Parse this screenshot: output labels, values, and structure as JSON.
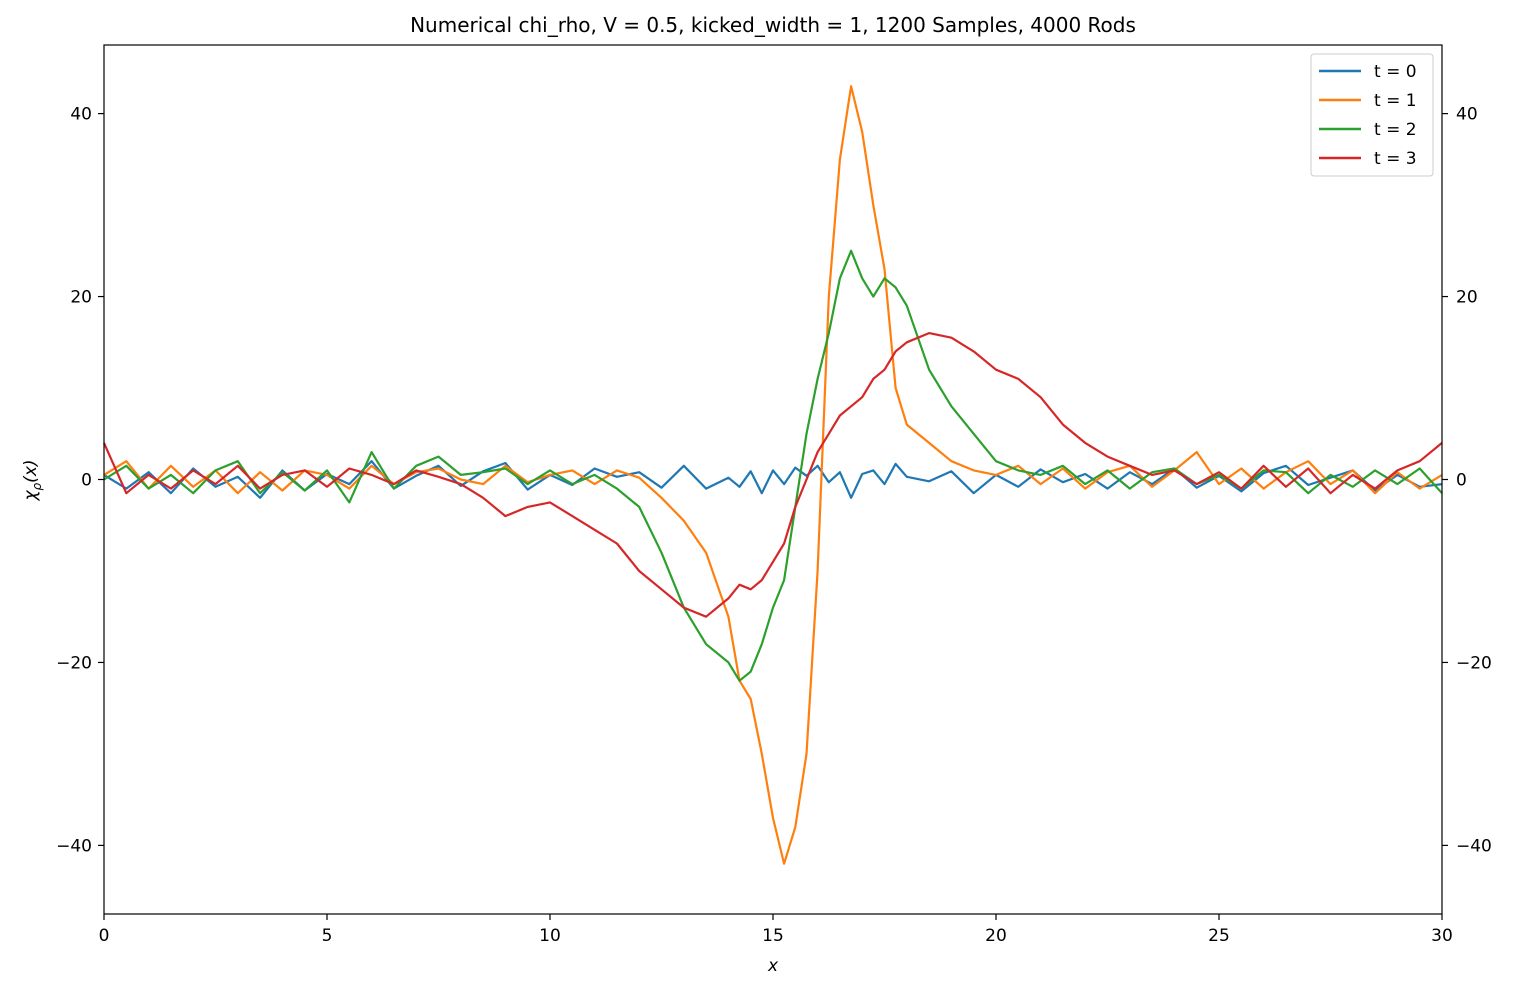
{
  "chart_data": {
    "type": "line",
    "title": "Numerical chi_rho, V = 0.5, kicked_width = 1, 1200 Samples, 4000 Rods",
    "xlabel": "x",
    "ylabel": "χρ(x)",
    "ylabel_main": "χ",
    "ylabel_sub": "ρ",
    "ylabel_arg": "(x)",
    "xlim": [
      0,
      30
    ],
    "ylim": [
      -47.5,
      47.5
    ],
    "xticks": [
      0,
      5,
      10,
      15,
      20,
      25,
      30
    ],
    "xtick_labels": [
      "0",
      "5",
      "10",
      "15",
      "20",
      "25",
      "30"
    ],
    "yticks": [
      -40,
      -20,
      0,
      20,
      40
    ],
    "ytick_labels": [
      "−40",
      "−20",
      "0",
      "20",
      "40"
    ],
    "right_yticks": [
      -40,
      -20,
      0,
      20,
      40
    ],
    "right_ytick_labels": [
      "−40",
      "−20",
      "0",
      "20",
      "40"
    ],
    "grid": false,
    "legend_position": "top-right",
    "x": [
      0.0,
      0.5,
      1.0,
      1.5,
      2.0,
      2.5,
      3.0,
      3.5,
      4.0,
      4.5,
      5.0,
      5.5,
      6.0,
      6.5,
      7.0,
      7.5,
      8.0,
      8.5,
      9.0,
      9.5,
      10.0,
      10.5,
      11.0,
      11.5,
      12.0,
      12.5,
      13.0,
      13.5,
      14.0,
      14.25,
      14.5,
      14.75,
      15.0,
      15.25,
      15.5,
      15.75,
      16.0,
      16.25,
      16.5,
      16.75,
      17.0,
      17.25,
      17.5,
      17.75,
      18.0,
      18.5,
      19.0,
      19.5,
      20.0,
      20.5,
      21.0,
      21.5,
      22.0,
      22.5,
      23.0,
      23.5,
      24.0,
      24.5,
      25.0,
      25.5,
      26.0,
      26.5,
      27.0,
      27.5,
      28.0,
      28.5,
      29.0,
      29.5,
      30.0
    ],
    "series": [
      {
        "name": "t = 0",
        "color": "#1f77b4",
        "values": [
          0.5,
          -1.0,
          0.8,
          -1.5,
          1.2,
          -0.8,
          0.3,
          -2.0,
          1.0,
          -1.2,
          0.6,
          -0.5,
          2.0,
          -1.0,
          0.4,
          1.5,
          -0.7,
          0.9,
          1.8,
          -1.1,
          0.5,
          -0.6,
          1.2,
          0.3,
          0.8,
          -0.9,
          1.5,
          -1.0,
          0.2,
          -0.8,
          0.9,
          -1.5,
          1.0,
          -0.5,
          1.3,
          0.4,
          1.5,
          -0.3,
          0.8,
          -2.0,
          0.6,
          1.0,
          -0.5,
          1.7,
          0.3,
          -0.2,
          0.9,
          -1.5,
          0.5,
          -0.8,
          1.1,
          -0.3,
          0.6,
          -1.0,
          0.8,
          -0.5,
          1.2,
          -0.9,
          0.4,
          -1.3,
          0.7,
          1.5,
          -0.6,
          0.2,
          1.0,
          -1.2,
          0.5,
          -0.8,
          -0.5
        ]
      },
      {
        "name": "t = 1",
        "color": "#ff7f0e",
        "values": [
          0.5,
          2.0,
          -1.0,
          1.5,
          -0.8,
          1.0,
          -1.5,
          0.8,
          -1.2,
          1.0,
          0.5,
          -1.0,
          1.5,
          -0.5,
          0.8,
          1.2,
          0.0,
          -0.5,
          1.5,
          -0.3,
          0.5,
          1.0,
          -0.5,
          1.0,
          0.2,
          -2.0,
          -4.5,
          -8.0,
          -15.0,
          -22.0,
          -24.0,
          -30.0,
          -37.0,
          -42.0,
          -38.0,
          -30.0,
          -10.0,
          20.0,
          35.0,
          43.0,
          38.0,
          30.0,
          23.0,
          10.0,
          6.0,
          4.0,
          2.0,
          1.0,
          0.5,
          1.5,
          -0.5,
          1.2,
          -1.0,
          0.8,
          1.5,
          -0.8,
          1.0,
          3.0,
          -0.5,
          1.2,
          -1.0,
          0.8,
          2.0,
          -0.5,
          1.0,
          -1.5,
          0.8,
          -1.0,
          0.5
        ]
      },
      {
        "name": "t = 2",
        "color": "#2ca02c",
        "values": [
          0.0,
          1.5,
          -1.0,
          0.5,
          -1.5,
          1.0,
          2.0,
          -1.5,
          0.8,
          -1.2,
          1.0,
          -2.5,
          3.0,
          -1.0,
          1.5,
          2.5,
          0.5,
          0.8,
          1.2,
          -0.5,
          1.0,
          -0.5,
          0.5,
          -1.0,
          -3.0,
          -8.0,
          -14.0,
          -18.0,
          -20.0,
          -22.0,
          -21.0,
          -18.0,
          -14.0,
          -11.0,
          -3.0,
          5.0,
          11.0,
          16.0,
          22.0,
          25.0,
          22.0,
          20.0,
          22.0,
          21.0,
          19.0,
          12.0,
          8.0,
          5.0,
          2.0,
          1.0,
          0.5,
          1.5,
          -0.5,
          1.0,
          -1.0,
          0.8,
          1.2,
          -0.5,
          0.5,
          -1.0,
          1.0,
          0.8,
          -1.5,
          0.5,
          -0.8,
          1.0,
          -0.5,
          1.2,
          -1.5
        ]
      },
      {
        "name": "t = 3",
        "color": "#d62728",
        "values": [
          4.0,
          -1.5,
          0.5,
          -1.0,
          1.0,
          -0.5,
          1.5,
          -1.0,
          0.5,
          1.0,
          -0.8,
          1.2,
          0.5,
          -0.5,
          1.0,
          0.3,
          -0.5,
          -2.0,
          -4.0,
          -3.0,
          -2.5,
          -4.0,
          -5.5,
          -7.0,
          -10.0,
          -12.0,
          -14.0,
          -15.0,
          -13.0,
          -11.5,
          -12.0,
          -11.0,
          -9.0,
          -7.0,
          -3.0,
          0.0,
          3.0,
          5.0,
          7.0,
          8.0,
          9.0,
          11.0,
          12.0,
          14.0,
          15.0,
          16.0,
          15.5,
          14.0,
          12.0,
          11.0,
          9.0,
          6.0,
          4.0,
          2.5,
          1.5,
          0.5,
          1.0,
          -0.5,
          0.8,
          -1.0,
          1.5,
          -0.8,
          1.2,
          -1.5,
          0.5,
          -1.0,
          1.0,
          2.0,
          4.0
        ]
      }
    ]
  }
}
